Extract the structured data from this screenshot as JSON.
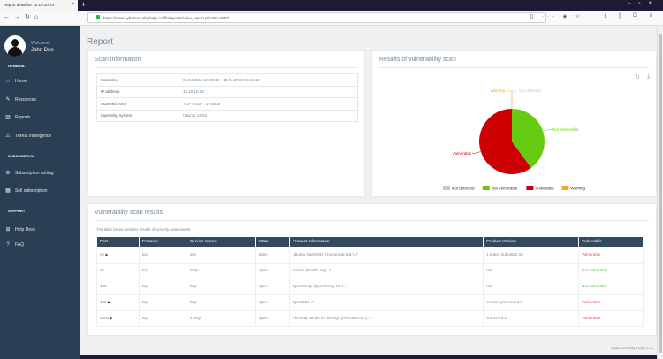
{
  "browser": {
    "tab_title": "Report detail for 10.10.10.24",
    "url": "https://www.cybersecurity-help.cz/dfo/reports/view_report.php?ID=8827"
  },
  "sidebar": {
    "welcome": "Welcome,",
    "username": "John Doe",
    "sections": [
      {
        "title": "GENERAL",
        "items": [
          {
            "label": "Home",
            "icon": "home-icon"
          },
          {
            "label": "Resources",
            "icon": "edit-icon"
          },
          {
            "label": "Reports",
            "icon": "bar-chart-icon"
          },
          {
            "label": "Threat Intelligence",
            "icon": "warning-icon"
          }
        ]
      },
      {
        "title": "SUBSCRIPTION",
        "items": [
          {
            "label": "Subscription setting",
            "icon": "gear-icon"
          },
          {
            "label": "Sell subscription",
            "icon": "table-icon"
          }
        ]
      },
      {
        "title": "SUPPORT",
        "items": [
          {
            "label": "Help Desk",
            "icon": "sitemap-icon"
          },
          {
            "label": "FAQ",
            "icon": "question-icon"
          }
        ]
      }
    ]
  },
  "page_title": "Report",
  "scan_info": {
    "title": "Scan information",
    "rows": [
      [
        "Scan time",
        "07.04.2018 19:25:02 - 18.04.2018 00:24:42"
      ],
      [
        "IP address",
        "10.10.10.24"
      ],
      [
        "Scanned ports",
        "TCP / UDP : 1-65535"
      ],
      [
        "Operating system",
        "Ubuntu 14.04"
      ]
    ]
  },
  "chart_panel": {
    "title": "Results of vulnerability scan"
  },
  "chart_data": {
    "type": "pie",
    "categories": [
      "Not detected",
      "Not Vulnerable",
      "Vulnerable",
      "Warning"
    ],
    "values": [
      0,
      2,
      3,
      0
    ],
    "colors": [
      "#c8c8c8",
      "#66cc11",
      "#cc0000",
      "#f5a623"
    ],
    "legend": "bottom"
  },
  "results": {
    "title": "Vulnerability scan results",
    "description": "The table below contains results of security assessment.",
    "columns": [
      "Port",
      "Protocol",
      "Service Name",
      "State",
      "Product Information",
      "Product Version",
      "Vulnerable"
    ],
    "rows": [
      {
        "port": "22",
        "lock": true,
        "protocol": "tcp",
        "service": "ssh",
        "state": "open",
        "product": "Ubuntu OpenSSH (Canonical Ltd.)",
        "version": "1:6.6p1-2ubuntu2.10",
        "vulnerable": "Vulnerable",
        "vuln": true
      },
      {
        "port": "25",
        "lock": false,
        "protocol": "tcp",
        "service": "smtp",
        "state": "open",
        "product": "Postfix (Postfix.org)",
        "version": "n/a",
        "vulnerable": "Not vulnerable",
        "vuln": false
      },
      {
        "port": "443",
        "lock": false,
        "protocol": "tcp",
        "service": "http",
        "state": "open",
        "product": "OpenResty (OpenResty Inc.)",
        "version": "n/a",
        "vulnerable": "Not vulnerable",
        "vuln": false
      },
      {
        "port": "443",
        "lock": true,
        "protocol": "tcp",
        "service": "http",
        "state": "open",
        "product": "OpenSSL",
        "version": "version prior to 1.1.0",
        "vulnerable": "Vulnerable",
        "vuln": true
      },
      {
        "port": "3306",
        "lock": true,
        "protocol": "tcp",
        "service": "mysql",
        "state": "open",
        "product": "Percona Server for MySQL (Percona LLC)",
        "version": "5.6.34-79.1",
        "vulnerable": "Vulnerable",
        "vuln": true
      }
    ]
  },
  "footer": "Cybersecurity Help s.r.o."
}
